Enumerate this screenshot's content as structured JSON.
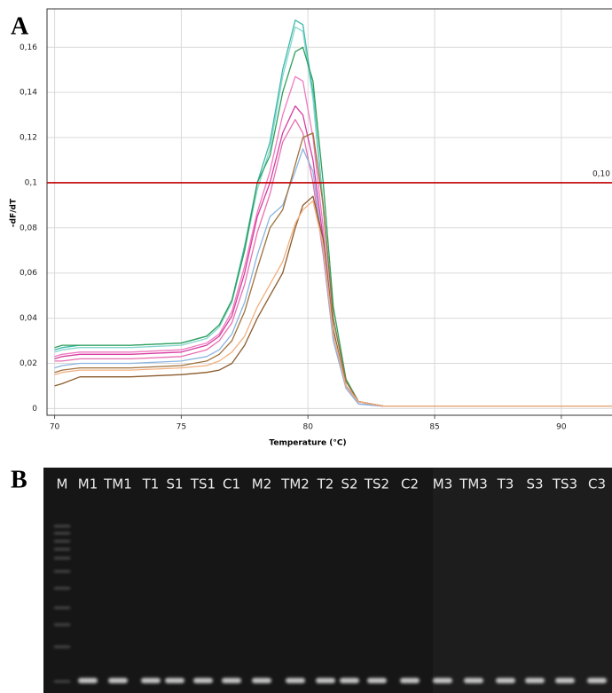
{
  "panel_labels": [
    "A",
    "B"
  ],
  "chart_data": {
    "type": "line",
    "x_label": "Temperature (°C)",
    "y_label": "-dF/dT",
    "xlim": [
      69.7,
      92
    ],
    "ylim": [
      -0.003,
      0.177
    ],
    "xticks": [
      70,
      75,
      80,
      85,
      90
    ],
    "yticks": [
      0,
      {
        "value": 0.02,
        "label": "0,02"
      },
      {
        "value": 0.04,
        "label": "0,04"
      },
      {
        "value": 0.06,
        "label": "0,06"
      },
      {
        "value": 0.08,
        "label": "0,08"
      },
      {
        "value": 0.1,
        "label": "0,1"
      },
      {
        "value": 0.12,
        "label": "0,12"
      },
      {
        "value": 0.14,
        "label": "0,14"
      },
      {
        "value": 0.16,
        "label": "0,16"
      }
    ],
    "grid": true,
    "threshold": {
      "value": 0.1,
      "label": "0,10",
      "color": "#c00000"
    },
    "x": [
      70,
      70.3,
      71,
      73,
      75,
      76,
      76.5,
      77,
      77.5,
      78,
      78.5,
      79,
      79.5,
      79.8,
      80.2,
      80.6,
      81,
      81.5,
      82,
      83,
      86,
      92
    ],
    "series": [
      {
        "color": "#3bb9a8",
        "values": [
          0.026,
          0.027,
          0.028,
          0.028,
          0.029,
          0.032,
          0.037,
          0.048,
          0.072,
          0.1,
          0.118,
          0.15,
          0.172,
          0.17,
          0.14,
          0.09,
          0.04,
          0.012,
          0.003,
          0.001,
          0.001,
          0.001
        ]
      },
      {
        "color": "#86d6cf",
        "values": [
          0.025,
          0.026,
          0.027,
          0.027,
          0.028,
          0.031,
          0.036,
          0.047,
          0.07,
          0.097,
          0.115,
          0.147,
          0.169,
          0.167,
          0.137,
          0.088,
          0.039,
          0.012,
          0.003,
          0.001,
          0.001,
          0.001
        ]
      },
      {
        "color": "#2e9e5b",
        "values": [
          0.027,
          0.028,
          0.028,
          0.028,
          0.029,
          0.032,
          0.037,
          0.048,
          0.07,
          0.1,
          0.112,
          0.14,
          0.158,
          0.16,
          0.145,
          0.1,
          0.045,
          0.013,
          0.003,
          0.001,
          0.001,
          0.001
        ]
      },
      {
        "color": "#f07ac0",
        "values": [
          0.023,
          0.024,
          0.025,
          0.025,
          0.026,
          0.029,
          0.033,
          0.043,
          0.063,
          0.087,
          0.105,
          0.13,
          0.147,
          0.145,
          0.12,
          0.08,
          0.035,
          0.01,
          0.003,
          0.001,
          0.001,
          0.001
        ]
      },
      {
        "color": "#d63ca0",
        "values": [
          0.022,
          0.023,
          0.024,
          0.024,
          0.025,
          0.028,
          0.032,
          0.041,
          0.06,
          0.085,
          0.1,
          0.122,
          0.134,
          0.13,
          0.11,
          0.075,
          0.033,
          0.01,
          0.003,
          0.001,
          0.001,
          0.001
        ]
      },
      {
        "color": "#e86fb0",
        "values": [
          0.021,
          0.021,
          0.022,
          0.022,
          0.023,
          0.026,
          0.03,
          0.038,
          0.055,
          0.078,
          0.095,
          0.118,
          0.128,
          0.122,
          0.1,
          0.068,
          0.03,
          0.009,
          0.002,
          0.001,
          0.001,
          0.001
        ]
      },
      {
        "color": "#8ab4e0",
        "values": [
          0.018,
          0.019,
          0.02,
          0.02,
          0.021,
          0.023,
          0.026,
          0.033,
          0.047,
          0.068,
          0.085,
          0.09,
          0.105,
          0.115,
          0.105,
          0.07,
          0.03,
          0.009,
          0.002,
          0.001,
          0.001,
          0.001
        ]
      },
      {
        "color": "#a0703a",
        "values": [
          0.016,
          0.017,
          0.018,
          0.018,
          0.019,
          0.021,
          0.024,
          0.03,
          0.043,
          0.062,
          0.08,
          0.088,
          0.108,
          0.12,
          0.122,
          0.09,
          0.04,
          0.012,
          0.003,
          0.001,
          0.001,
          0.001
        ]
      },
      {
        "color": "#8b5a2b",
        "values": [
          0.01,
          0.011,
          0.014,
          0.014,
          0.015,
          0.016,
          0.017,
          0.02,
          0.028,
          0.04,
          0.05,
          0.06,
          0.08,
          0.09,
          0.094,
          0.075,
          0.035,
          0.01,
          0.003,
          0.001,
          0.001,
          0.001
        ]
      },
      {
        "color": "#f0b080",
        "values": [
          0.015,
          0.016,
          0.017,
          0.017,
          0.018,
          0.019,
          0.021,
          0.025,
          0.032,
          0.045,
          0.055,
          0.065,
          0.082,
          0.088,
          0.092,
          0.072,
          0.033,
          0.01,
          0.003,
          0.001,
          0.001,
          0.001
        ]
      }
    ]
  },
  "gel": {
    "marker_color": "#e53935",
    "lanes": [
      "M",
      "M1",
      "TM1",
      "T1",
      "S1",
      "TS1",
      "C1",
      "M2",
      "TM2",
      "T2",
      "S2",
      "TS2",
      "C2",
      "M3",
      "TM3",
      "T3",
      "S3",
      "TS3",
      "C3"
    ]
  }
}
